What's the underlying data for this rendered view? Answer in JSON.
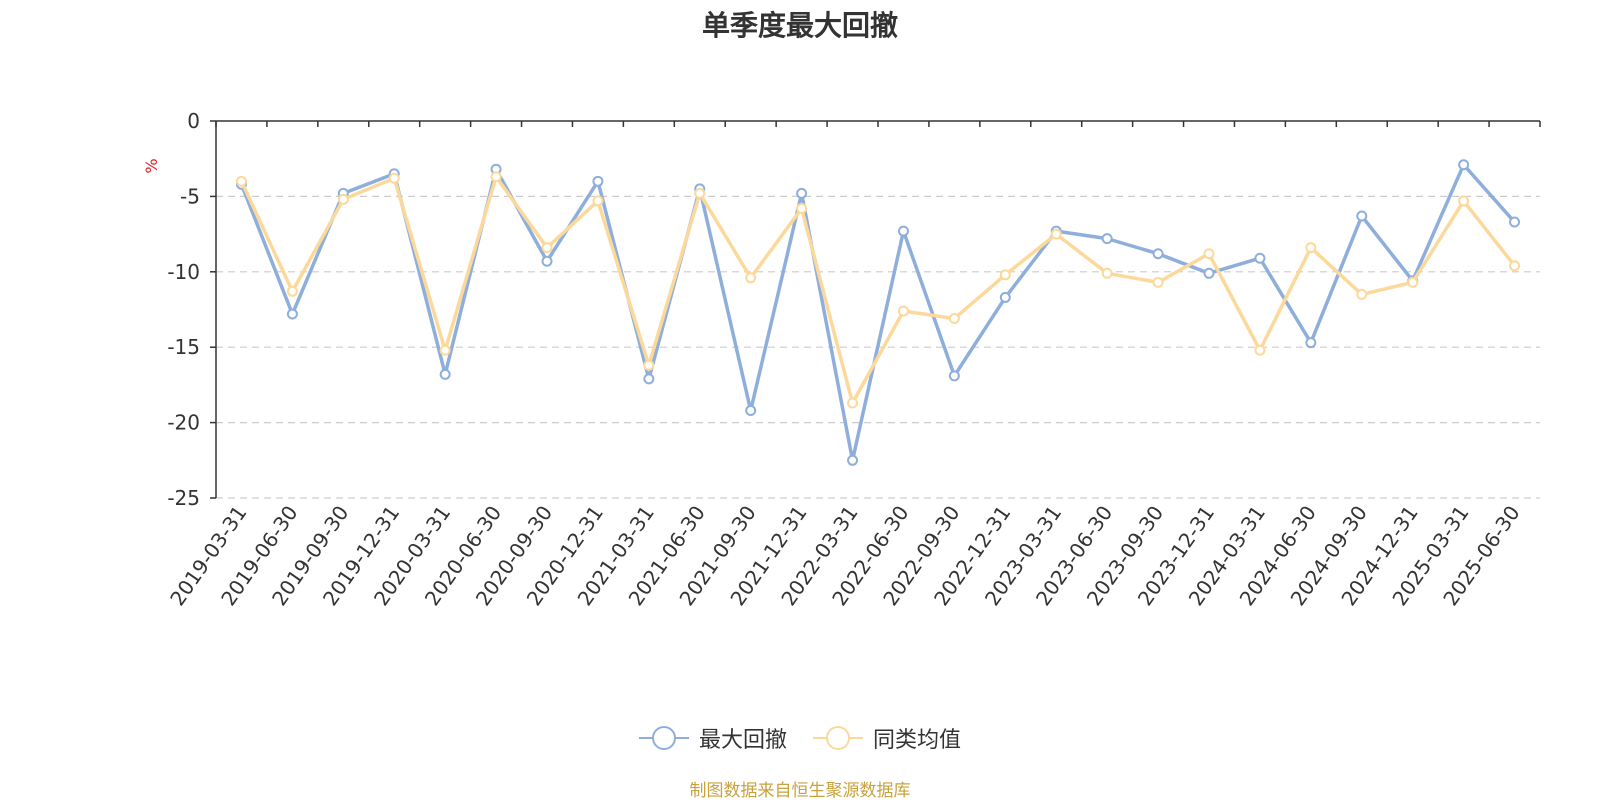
{
  "chart_data": {
    "type": "line",
    "title": "单季度最大回撤",
    "ylabel": "%",
    "ylim": [
      -25,
      0
    ],
    "yticks": [
      0,
      -5,
      -10,
      -15,
      -20,
      -25
    ],
    "grid": true,
    "legend_position": "bottom",
    "categories": [
      "2019-03-31",
      "2019-06-30",
      "2019-09-30",
      "2019-12-31",
      "2020-03-31",
      "2020-06-30",
      "2020-09-30",
      "2020-12-31",
      "2021-03-31",
      "2021-06-30",
      "2021-09-30",
      "2021-12-31",
      "2022-03-31",
      "2022-06-30",
      "2022-09-30",
      "2022-12-31",
      "2023-03-31",
      "2023-06-30",
      "2023-09-30",
      "2023-12-31",
      "2024-03-31",
      "2024-06-30",
      "2024-09-30",
      "2024-12-31",
      "2025-03-31",
      "2025-06-30"
    ],
    "series": [
      {
        "name": "最大回撤",
        "color": "#8eaedc",
        "values": [
          -4.2,
          -12.8,
          -4.8,
          -3.5,
          -16.8,
          -3.2,
          -9.3,
          -4.0,
          -17.1,
          -4.5,
          -19.2,
          -4.8,
          -22.5,
          -7.3,
          -16.9,
          -11.7,
          -7.3,
          -7.8,
          -8.8,
          -10.1,
          -9.1,
          -14.7,
          -6.3,
          -10.6,
          -2.9,
          -6.7
        ]
      },
      {
        "name": "同类均值",
        "color": "#fcd99a",
        "values": [
          -4.0,
          -11.3,
          -5.2,
          -3.8,
          -15.2,
          -3.7,
          -8.4,
          -5.3,
          -16.2,
          -4.8,
          -10.4,
          -5.8,
          -18.7,
          -12.6,
          -13.1,
          -10.2,
          -7.5,
          -10.1,
          -10.7,
          -8.8,
          -15.2,
          -8.4,
          -11.5,
          -10.7,
          -5.3,
          -9.6
        ]
      }
    ]
  },
  "footer": {
    "source": "制图数据来自恒生聚源数据库"
  }
}
